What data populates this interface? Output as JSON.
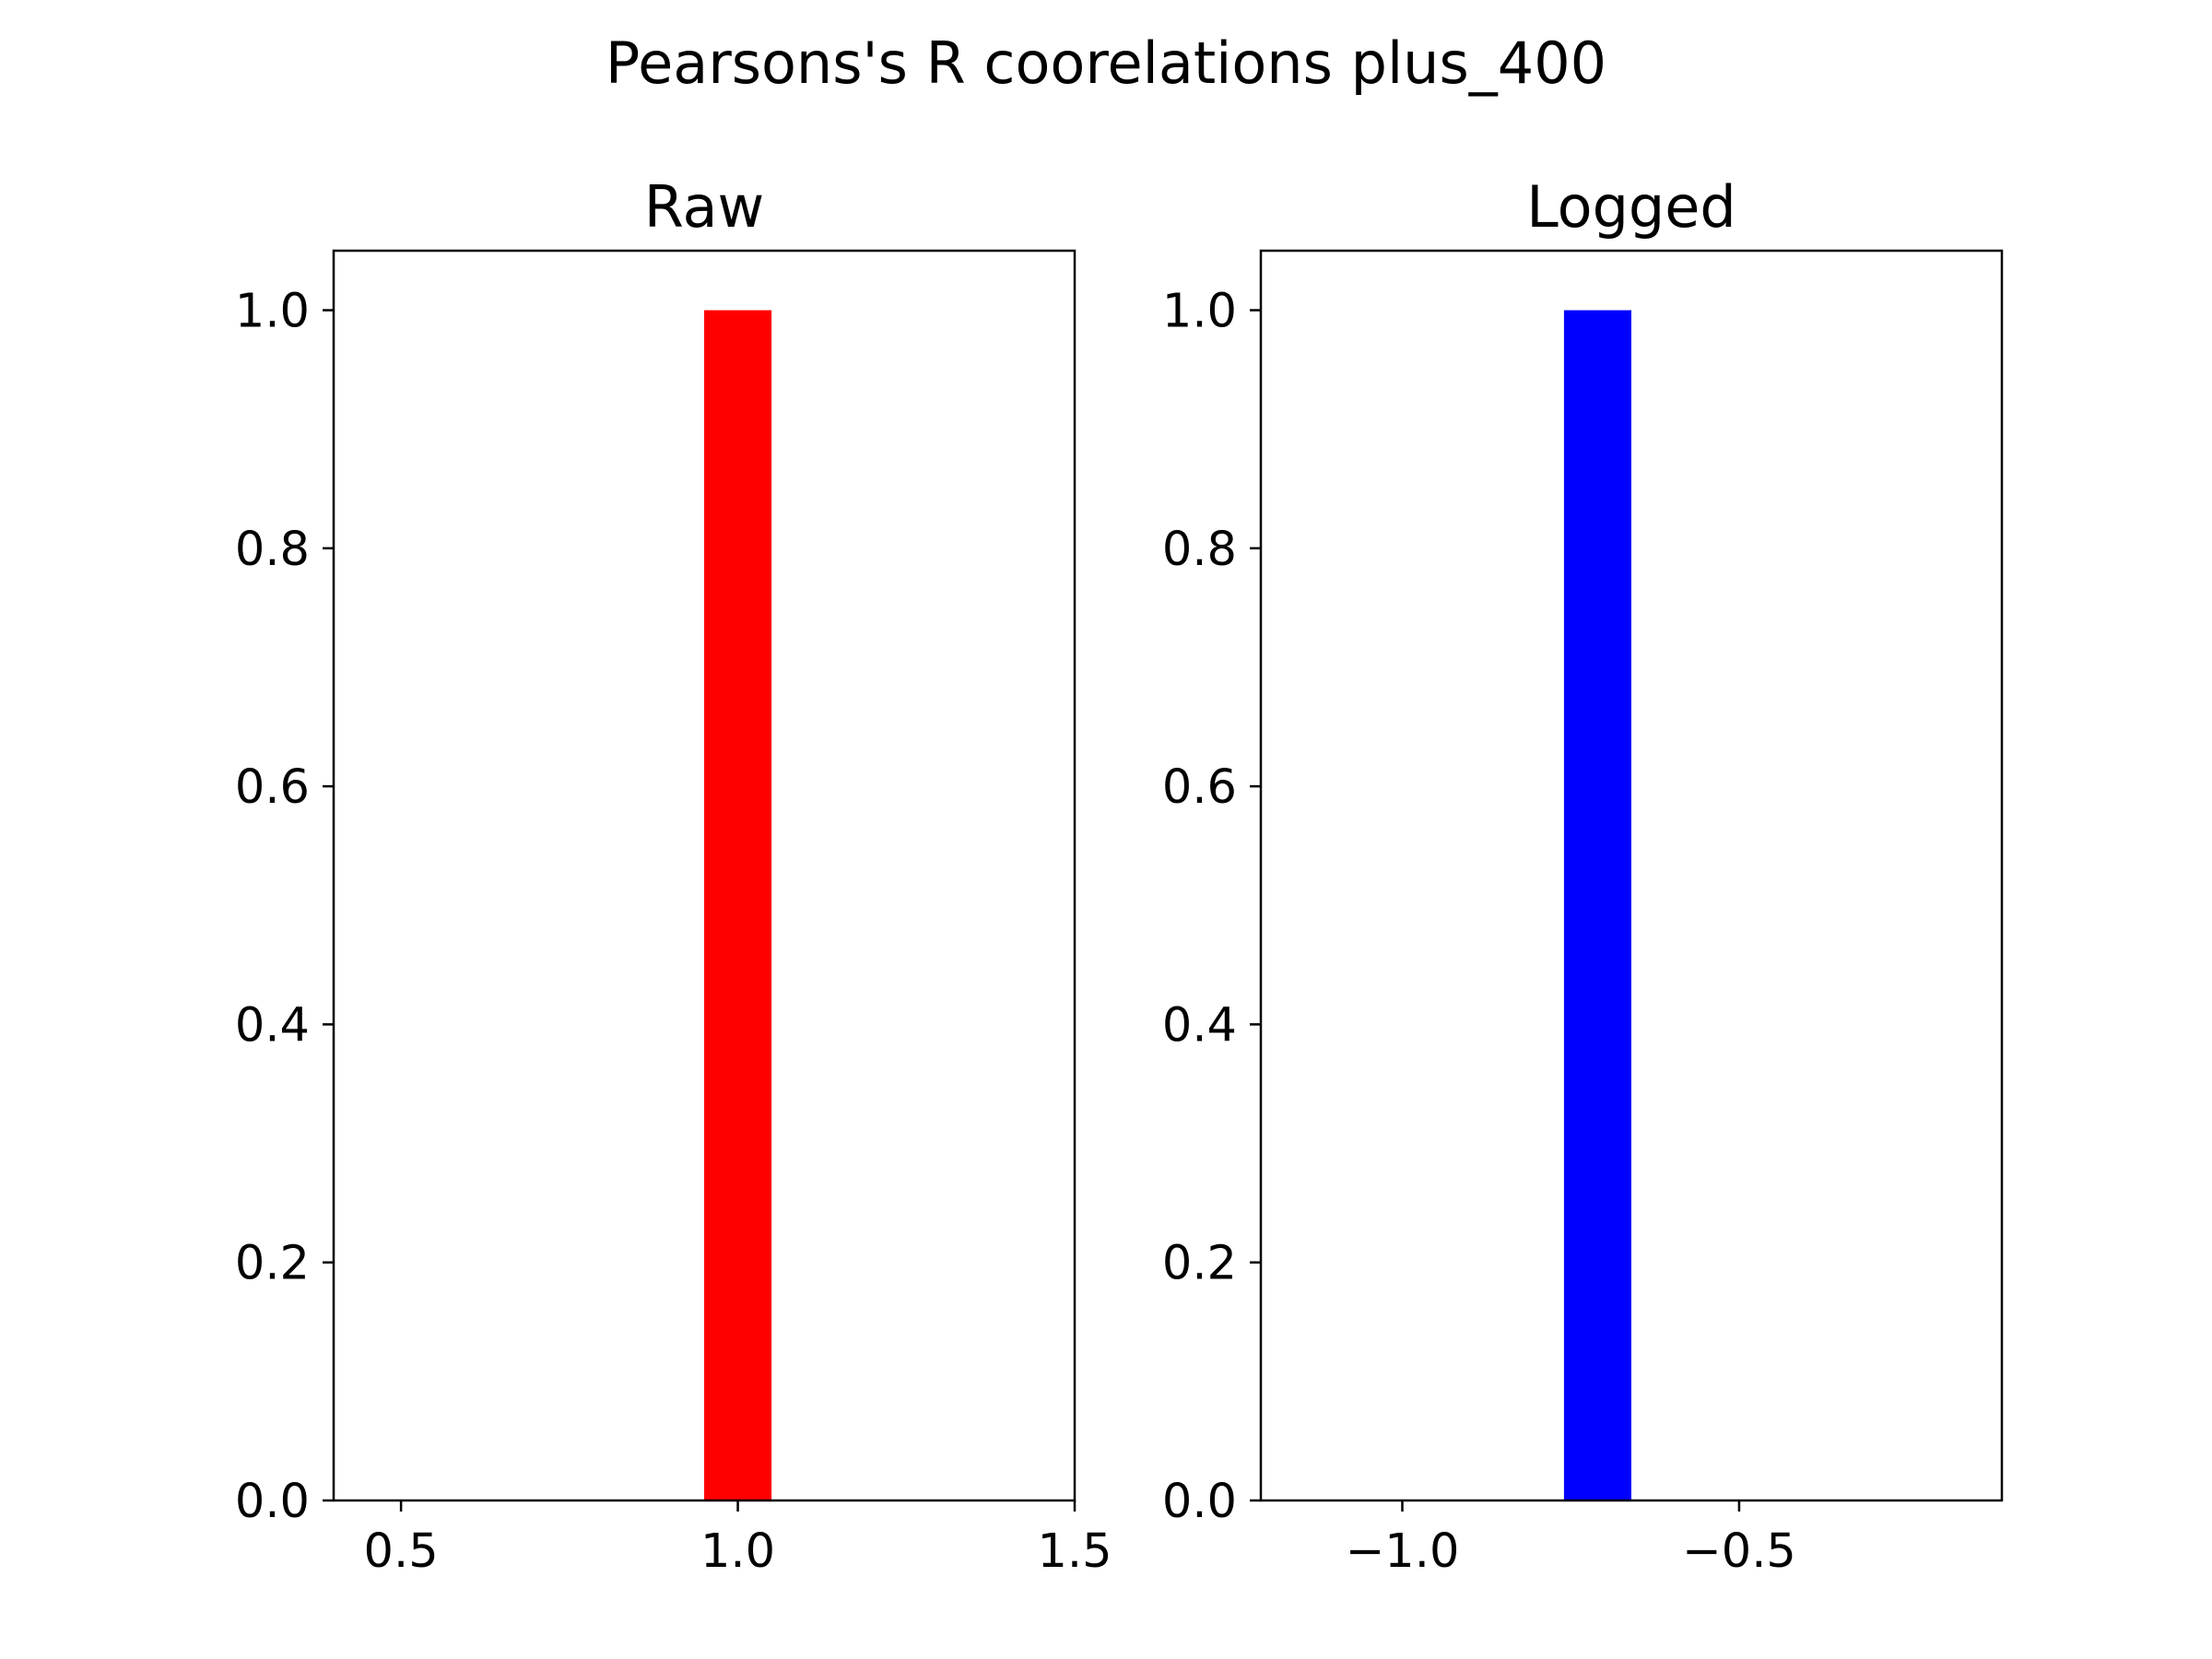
{
  "figure": {
    "suptitle": "Pearsons's R coorelations plus_400"
  },
  "chart_data": [
    {
      "type": "bar",
      "title": "Raw",
      "xlabel": "",
      "ylabel": "",
      "bars": [
        {
          "x_left": 0.95,
          "x_right": 1.05,
          "value": 1.0
        }
      ],
      "xlim": [
        0.4,
        1.5
      ],
      "ylim": [
        0.0,
        1.05
      ],
      "xticks": [
        0.5,
        1.0,
        1.5
      ],
      "xtick_labels": [
        "0.5",
        "1.0",
        "1.5"
      ],
      "yticks": [
        0.0,
        0.2,
        0.4,
        0.6,
        0.8,
        1.0
      ],
      "ytick_labels": [
        "0.0",
        "0.2",
        "0.4",
        "0.6",
        "0.8",
        "1.0"
      ],
      "color": "#ff0000",
      "grid": false
    },
    {
      "type": "bar",
      "title": "Logged",
      "xlabel": "",
      "ylabel": "",
      "bars": [
        {
          "x_left": -0.76,
          "x_right": -0.66,
          "value": 1.0
        }
      ],
      "xlim": [
        -1.21,
        -0.11
      ],
      "ylim": [
        0.0,
        1.05
      ],
      "xticks": [
        -1.0,
        -0.5
      ],
      "xtick_labels": [
        "−1.0",
        "−0.5"
      ],
      "yticks": [
        0.0,
        0.2,
        0.4,
        0.6,
        0.8,
        1.0
      ],
      "ytick_labels": [
        "0.0",
        "0.2",
        "0.4",
        "0.6",
        "0.8",
        "1.0"
      ],
      "color": "#0000ff",
      "grid": false
    }
  ]
}
